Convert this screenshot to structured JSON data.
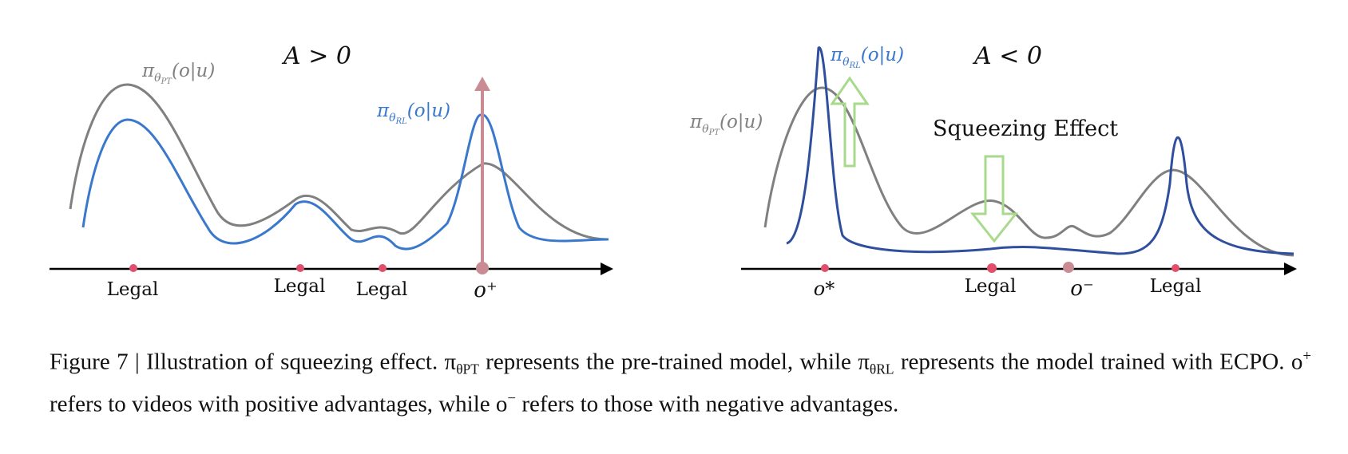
{
  "left_panel": {
    "condition": "A > 0",
    "pt_label": "π_{θPT}(o|u)",
    "rl_label": "π_{θRL}(o|u)",
    "x_labels": [
      "Legal",
      "Legal",
      "Legal",
      "o⁺"
    ]
  },
  "right_panel": {
    "condition": "A < 0",
    "pt_label": "π_{θPT}(o|u)",
    "rl_label": "π_{θRL}(o|u)",
    "effect_label": "Squeezing Effect",
    "x_labels": [
      "o*",
      "Legal",
      "o⁻",
      "Legal"
    ]
  },
  "caption": {
    "part1": "Figure 7 | Illustration of squeezing effect. π",
    "pt_sub": "θPT",
    "part2": " represents the pre-trained model, while π",
    "rl_sub": "θRL",
    "part3": " represents the model trained with ECPO. o",
    "plus": "+",
    "part4": " refers to videos with positive advantages, while o",
    "minus": "−",
    "part5": " refers to those with negative advantages."
  },
  "colors": {
    "pretrained": "#808080",
    "rl_left": "#3a78cc",
    "rl_right": "#2f4f9e",
    "arrow_up": "#c98c94",
    "squeeze_arrow": "#a9d98c",
    "marker": "#e0506c",
    "marker_neg": "#c98c94"
  }
}
